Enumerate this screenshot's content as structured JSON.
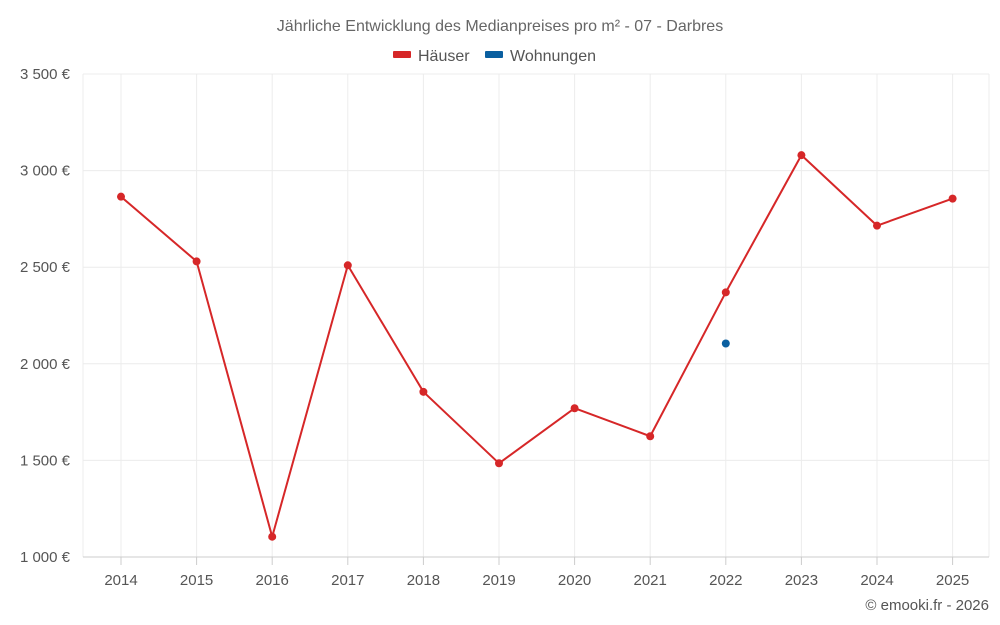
{
  "chart_data": {
    "type": "line",
    "title": "Jährliche Entwicklung des Medianpreises pro m² - 07 - Darbres",
    "x": [
      "2014",
      "2015",
      "2016",
      "2017",
      "2018",
      "2019",
      "2020",
      "2021",
      "2022",
      "2023",
      "2024",
      "2025"
    ],
    "series": [
      {
        "name": "Häuser",
        "color": "#d62728",
        "values": [
          2865,
          2530,
          1105,
          2510,
          1855,
          1485,
          1770,
          1625,
          2370,
          3080,
          2715,
          2855
        ]
      },
      {
        "name": "Wohnungen",
        "color": "#0a5fa0",
        "values": [
          null,
          null,
          null,
          null,
          null,
          null,
          null,
          null,
          2105,
          null,
          null,
          null
        ]
      }
    ],
    "ylim": [
      1000,
      3500
    ],
    "yticks": [
      1000,
      1500,
      2000,
      2500,
      3000,
      3500
    ],
    "ytick_labels": [
      "1 000 €",
      "1 500 €",
      "2 000 €",
      "2 500 €",
      "3 000 €",
      "3 500 €"
    ],
    "grid": true,
    "legend_position": "top-center"
  },
  "credit": "© emooki.fr - 2026"
}
